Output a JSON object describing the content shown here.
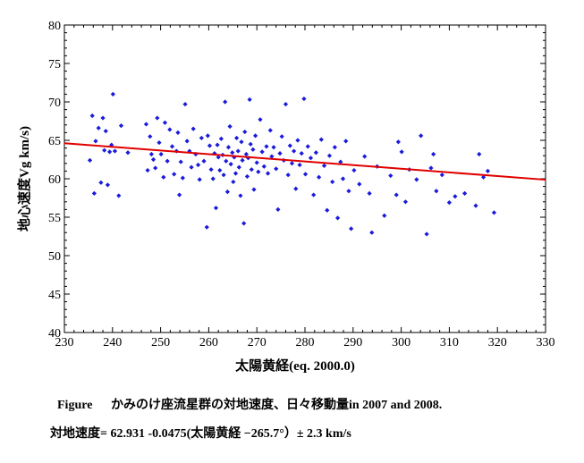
{
  "chart_data": {
    "type": "scatter",
    "xlabel": "太陽黄経(eq. 2000.0)",
    "ylabel": "地心速度Vg km/s)",
    "xlim": [
      230,
      330
    ],
    "ylim": [
      40,
      80
    ],
    "x_ticks": [
      230,
      240,
      250,
      260,
      270,
      280,
      290,
      300,
      310,
      320,
      330
    ],
    "y_ticks": [
      40,
      45,
      50,
      55,
      60,
      65,
      70,
      75,
      80
    ],
    "grid": false,
    "marker_color": "#1a1adc",
    "trend": {
      "intercept": 62.931,
      "slope": -0.0475,
      "x_center": 265.7,
      "color": "#e00000"
    },
    "series": [
      {
        "points": [
          [
            235.3,
            62.4
          ],
          [
            235.8,
            68.2
          ],
          [
            236.2,
            58.1
          ],
          [
            236.5,
            64.9
          ],
          [
            237.1,
            66.6
          ],
          [
            237.6,
            59.5
          ],
          [
            238.0,
            67.9
          ],
          [
            238.3,
            63.7
          ],
          [
            238.6,
            66.2
          ],
          [
            239.0,
            59.2
          ],
          [
            239.4,
            63.5
          ],
          [
            239.8,
            64.4
          ],
          [
            240.1,
            71.0
          ],
          [
            240.5,
            63.6
          ],
          [
            241.3,
            57.8
          ],
          [
            241.8,
            66.9
          ],
          [
            243.2,
            63.4
          ],
          [
            247.0,
            67.1
          ],
          [
            247.3,
            61.1
          ],
          [
            247.8,
            65.5
          ],
          [
            248.1,
            63.2
          ],
          [
            248.5,
            62.5
          ],
          [
            248.9,
            61.4
          ],
          [
            249.3,
            67.9
          ],
          [
            249.7,
            64.7
          ],
          [
            250.1,
            63.2
          ],
          [
            250.6,
            60.2
          ],
          [
            250.9,
            67.3
          ],
          [
            251.4,
            62.3
          ],
          [
            251.9,
            66.4
          ],
          [
            252.4,
            64.2
          ],
          [
            252.8,
            60.6
          ],
          [
            253.3,
            63.6
          ],
          [
            253.6,
            66.0
          ],
          [
            253.9,
            57.9
          ],
          [
            254.2,
            62.2
          ],
          [
            254.6,
            60.1
          ],
          [
            255.1,
            69.7
          ],
          [
            255.5,
            64.9
          ],
          [
            256.0,
            63.6
          ],
          [
            256.4,
            61.5
          ],
          [
            256.8,
            66.5
          ],
          [
            257.3,
            63.2
          ],
          [
            257.8,
            61.8
          ],
          [
            258.1,
            59.9
          ],
          [
            258.5,
            65.3
          ],
          [
            259.0,
            62.3
          ],
          [
            259.6,
            53.7
          ],
          [
            259.8,
            65.6
          ],
          [
            260.2,
            64.3
          ],
          [
            260.5,
            61.2
          ],
          [
            260.9,
            60.0
          ],
          [
            261.2,
            63.3
          ],
          [
            261.5,
            56.2
          ],
          [
            261.8,
            64.4
          ],
          [
            262.0,
            62.8
          ],
          [
            262.3,
            61.1
          ],
          [
            262.6,
            65.2
          ],
          [
            262.9,
            63.1
          ],
          [
            263.1,
            60.5
          ],
          [
            263.4,
            70.0
          ],
          [
            263.6,
            62.3
          ],
          [
            263.9,
            58.3
          ],
          [
            264.1,
            64.1
          ],
          [
            264.4,
            66.8
          ],
          [
            264.6,
            61.9
          ],
          [
            264.9,
            63.4
          ],
          [
            265.1,
            59.6
          ],
          [
            265.3,
            62.8
          ],
          [
            265.6,
            60.7
          ],
          [
            265.8,
            65.3
          ],
          [
            266.1,
            63.6
          ],
          [
            266.3,
            61.5
          ],
          [
            266.6,
            57.8
          ],
          [
            266.8,
            64.8
          ],
          [
            267.0,
            62.4
          ],
          [
            267.3,
            54.2
          ],
          [
            267.5,
            66.1
          ],
          [
            267.8,
            63.2
          ],
          [
            268.0,
            60.3
          ],
          [
            268.2,
            62.7
          ],
          [
            268.5,
            70.3
          ],
          [
            268.7,
            64.5
          ],
          [
            268.9,
            61.2
          ],
          [
            269.2,
            63.8
          ],
          [
            269.4,
            58.6
          ],
          [
            269.7,
            65.6
          ],
          [
            270.0,
            62.1
          ],
          [
            270.3,
            60.9
          ],
          [
            270.7,
            67.7
          ],
          [
            271.1,
            63.5
          ],
          [
            271.5,
            61.6
          ],
          [
            272.0,
            64.2
          ],
          [
            272.3,
            60.7
          ],
          [
            272.8,
            66.3
          ],
          [
            273.1,
            62.9
          ],
          [
            273.5,
            64.1
          ],
          [
            274.0,
            61.3
          ],
          [
            274.4,
            56.0
          ],
          [
            274.8,
            63.3
          ],
          [
            275.2,
            65.5
          ],
          [
            275.6,
            62.4
          ],
          [
            276.0,
            69.7
          ],
          [
            276.5,
            60.5
          ],
          [
            276.9,
            64.3
          ],
          [
            277.3,
            62.0
          ],
          [
            277.7,
            63.6
          ],
          [
            278.1,
            58.7
          ],
          [
            278.5,
            65.0
          ],
          [
            278.9,
            61.8
          ],
          [
            279.3,
            63.3
          ],
          [
            279.8,
            70.4
          ],
          [
            280.1,
            60.6
          ],
          [
            280.6,
            64.2
          ],
          [
            281.2,
            62.7
          ],
          [
            281.8,
            57.9
          ],
          [
            282.3,
            63.4
          ],
          [
            282.9,
            60.2
          ],
          [
            283.4,
            65.1
          ],
          [
            284.0,
            61.7
          ],
          [
            284.6,
            55.9
          ],
          [
            285.1,
            63.0
          ],
          [
            285.7,
            59.6
          ],
          [
            286.2,
            64.1
          ],
          [
            286.8,
            54.9
          ],
          [
            287.4,
            62.2
          ],
          [
            287.9,
            60.0
          ],
          [
            288.5,
            64.9
          ],
          [
            289.1,
            58.4
          ],
          [
            289.6,
            53.5
          ],
          [
            290.2,
            61.1
          ],
          [
            291.3,
            59.3
          ],
          [
            292.4,
            62.9
          ],
          [
            293.4,
            58.1
          ],
          [
            293.9,
            53.0
          ],
          [
            295.0,
            61.6
          ],
          [
            296.5,
            55.2
          ],
          [
            297.8,
            60.4
          ],
          [
            299.0,
            57.9
          ],
          [
            299.4,
            64.8
          ],
          [
            300.1,
            63.5
          ],
          [
            300.9,
            57.0
          ],
          [
            301.7,
            61.2
          ],
          [
            303.2,
            59.9
          ],
          [
            304.1,
            65.6
          ],
          [
            305.3,
            52.8
          ],
          [
            306.2,
            61.4
          ],
          [
            306.7,
            63.2
          ],
          [
            307.3,
            58.4
          ],
          [
            308.5,
            60.5
          ],
          [
            310.0,
            56.9
          ],
          [
            311.2,
            57.7
          ],
          [
            313.2,
            58.1
          ],
          [
            315.5,
            56.5
          ],
          [
            316.2,
            63.2
          ],
          [
            317.1,
            60.2
          ],
          [
            318.0,
            61.0
          ],
          [
            319.3,
            55.6
          ]
        ]
      }
    ]
  },
  "caption": {
    "label": "Figure",
    "text": "かみのけ座流星群の対地速度、日々移動量in 2007 and 2008.",
    "formula": "対地速度= 62.931 -0.0475(太陽黄経 −265.7°）± 2.3 km/s"
  }
}
